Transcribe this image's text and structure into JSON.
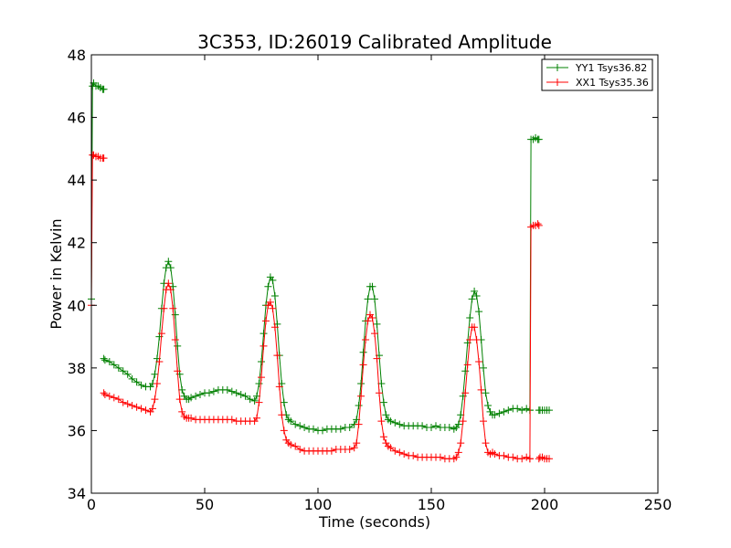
{
  "chart_data": {
    "type": "line",
    "title": "3C353, ID:26019 Calibrated Amplitude",
    "xlabel": "Time (seconds)",
    "ylabel": "Power in Kelvin",
    "xlim": [
      0,
      250
    ],
    "ylim": [
      34,
      48
    ],
    "xticks": [
      "0",
      "50",
      "100",
      "150",
      "200",
      "250"
    ],
    "yticks": [
      "34",
      "36",
      "38",
      "40",
      "42",
      "44",
      "46",
      "48"
    ],
    "grid": false,
    "legend_position": "top-right",
    "marker": "+",
    "series": [
      {
        "name": "YY1 Tsys36.82",
        "color": "#008000",
        "segments": [
          {
            "x": [
              0,
              0.5,
              1,
              2,
              3,
              4,
              5,
              5.5
            ],
            "y": [
              40.2,
              47.0,
              47.1,
              47.0,
              47.0,
              46.95,
              46.9,
              46.9
            ]
          },
          {
            "x": [
              5.5,
              6,
              8,
              10,
              12,
              14,
              16,
              18,
              20,
              22,
              24,
              26,
              27,
              28,
              29,
              30,
              31,
              32,
              33,
              34,
              35,
              36,
              37,
              38,
              39,
              40,
              41,
              42,
              43,
              44,
              46,
              48,
              50,
              52,
              54,
              56,
              58,
              60,
              62,
              64,
              66,
              68,
              70,
              72,
              73,
              74,
              75,
              76,
              77,
              78,
              79,
              80,
              81,
              82,
              83,
              84,
              85,
              86,
              87,
              88,
              90,
              92,
              94,
              96,
              98,
              100,
              102,
              104,
              106,
              108,
              110,
              112,
              114,
              116,
              117,
              118,
              119,
              120,
              121,
              122,
              123,
              124,
              125,
              126,
              127,
              128,
              129,
              130,
              131,
              132,
              134,
              136,
              138,
              140,
              142,
              144,
              146,
              148,
              150,
              152,
              154,
              156,
              158,
              160,
              161,
              162,
              163,
              164,
              165,
              166,
              167,
              168,
              169,
              170,
              171,
              172,
              173,
              174,
              175,
              176,
              177,
              178,
              180,
              182,
              184,
              186,
              188,
              190,
              192,
              193.5
            ],
            "y": [
              38.3,
              38.25,
              38.2,
              38.1,
              38.0,
              37.9,
              37.8,
              37.65,
              37.55,
              37.45,
              37.4,
              37.4,
              37.5,
              37.8,
              38.3,
              39.0,
              39.9,
              40.7,
              41.2,
              41.4,
              41.2,
              40.6,
              39.7,
              38.7,
              37.8,
              37.3,
              37.1,
              37.0,
              37.0,
              37.05,
              37.1,
              37.15,
              37.2,
              37.2,
              37.25,
              37.3,
              37.3,
              37.3,
              37.25,
              37.2,
              37.15,
              37.1,
              37.0,
              36.95,
              37.1,
              37.5,
              38.2,
              39.1,
              40.0,
              40.6,
              40.9,
              40.8,
              40.3,
              39.4,
              38.4,
              37.5,
              36.9,
              36.5,
              36.35,
              36.3,
              36.2,
              36.15,
              36.1,
              36.05,
              36.05,
              36.0,
              36.0,
              36.05,
              36.05,
              36.05,
              36.05,
              36.1,
              36.1,
              36.2,
              36.35,
              36.8,
              37.5,
              38.5,
              39.5,
              40.2,
              40.6,
              40.6,
              40.2,
              39.4,
              38.4,
              37.5,
              36.9,
              36.5,
              36.35,
              36.3,
              36.25,
              36.2,
              36.15,
              36.15,
              36.15,
              36.15,
              36.15,
              36.1,
              36.1,
              36.15,
              36.1,
              36.1,
              36.1,
              36.05,
              36.1,
              36.2,
              36.5,
              37.1,
              37.9,
              38.8,
              39.6,
              40.2,
              40.45,
              40.3,
              39.8,
              38.9,
              38.0,
              37.2,
              36.8,
              36.6,
              36.5,
              36.5,
              36.55,
              36.6,
              36.65,
              36.7,
              36.7,
              36.65,
              36.7,
              36.65
            ]
          },
          {
            "x": [
              193.5,
              194,
              195,
              196,
              197,
              197.5
            ],
            "y": [
              36.65,
              45.3,
              45.3,
              45.35,
              45.3,
              45.3
            ]
          },
          {
            "x": [
              197.5,
              198,
              199,
              200,
              201,
              202
            ],
            "y": [
              36.65,
              36.65,
              36.65,
              36.65,
              36.65,
              36.65
            ]
          }
        ]
      },
      {
        "name": "XX1 Tsys35.36",
        "color": "#ff0000",
        "segments": [
          {
            "x": [
              0,
              0.5,
              1,
              2,
              3,
              4,
              5,
              5.5
            ],
            "y": [
              40.0,
              44.8,
              44.8,
              44.75,
              44.75,
              44.7,
              44.7,
              44.7
            ]
          },
          {
            "x": [
              5.5,
              6,
              8,
              10,
              12,
              14,
              16,
              18,
              20,
              22,
              24,
              26,
              27,
              28,
              29,
              30,
              31,
              32,
              33,
              34,
              35,
              36,
              37,
              38,
              39,
              40,
              41,
              42,
              43,
              44,
              46,
              48,
              50,
              52,
              54,
              56,
              58,
              60,
              62,
              64,
              66,
              68,
              70,
              72,
              73,
              74,
              75,
              76,
              77,
              78,
              79,
              80,
              81,
              82,
              83,
              84,
              85,
              86,
              87,
              88,
              90,
              92,
              94,
              96,
              98,
              100,
              102,
              104,
              106,
              108,
              110,
              112,
              114,
              116,
              117,
              118,
              119,
              120,
              121,
              122,
              123,
              124,
              125,
              126,
              127,
              128,
              129,
              130,
              131,
              132,
              134,
              136,
              138,
              140,
              142,
              144,
              146,
              148,
              150,
              152,
              154,
              156,
              158,
              160,
              161,
              162,
              163,
              164,
              165,
              166,
              167,
              168,
              169,
              170,
              171,
              172,
              173,
              174,
              175,
              176,
              177,
              178,
              180,
              182,
              184,
              186,
              188,
              190,
              192,
              193.5
            ],
            "y": [
              37.2,
              37.15,
              37.1,
              37.05,
              37.0,
              36.9,
              36.85,
              36.8,
              36.75,
              36.7,
              36.65,
              36.6,
              36.7,
              37.0,
              37.5,
              38.2,
              39.1,
              39.9,
              40.5,
              40.7,
              40.5,
              39.9,
              38.9,
              37.9,
              37.0,
              36.6,
              36.45,
              36.4,
              36.4,
              36.4,
              36.35,
              36.35,
              36.35,
              36.35,
              36.35,
              36.35,
              36.35,
              36.35,
              36.35,
              36.3,
              36.3,
              36.3,
              36.3,
              36.3,
              36.4,
              36.9,
              37.7,
              38.7,
              39.5,
              40.0,
              40.1,
              39.9,
              39.3,
              38.4,
              37.4,
              36.5,
              36.0,
              35.7,
              35.6,
              35.55,
              35.5,
              35.4,
              35.35,
              35.35,
              35.35,
              35.35,
              35.35,
              35.35,
              35.35,
              35.4,
              35.4,
              35.4,
              35.4,
              35.45,
              35.6,
              36.2,
              37.1,
              38.1,
              38.9,
              39.5,
              39.7,
              39.6,
              39.1,
              38.3,
              37.2,
              36.3,
              35.8,
              35.6,
              35.5,
              35.45,
              35.35,
              35.3,
              35.25,
              35.2,
              35.2,
              35.15,
              35.15,
              35.15,
              35.15,
              35.15,
              35.15,
              35.1,
              35.1,
              35.1,
              35.15,
              35.3,
              35.6,
              36.3,
              37.2,
              38.1,
              38.9,
              39.3,
              39.3,
              38.9,
              38.2,
              37.3,
              36.3,
              35.6,
              35.3,
              35.25,
              35.3,
              35.25,
              35.2,
              35.2,
              35.15,
              35.15,
              35.1,
              35.1,
              35.15,
              35.1
            ]
          },
          {
            "x": [
              193.5,
              194,
              195,
              196,
              197,
              197.5
            ],
            "y": [
              35.1,
              42.5,
              42.55,
              42.55,
              42.6,
              42.55
            ]
          },
          {
            "x": [
              197.5,
              198,
              199,
              200,
              201,
              202
            ],
            "y": [
              35.1,
              35.15,
              35.15,
              35.1,
              35.1,
              35.1
            ]
          }
        ]
      }
    ]
  }
}
